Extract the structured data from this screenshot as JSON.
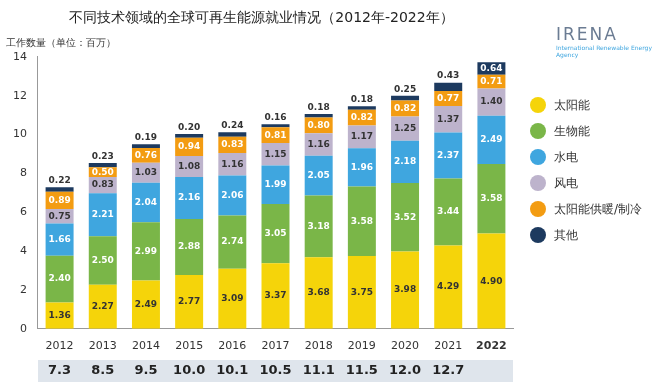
{
  "chart_data": {
    "type": "bar",
    "title": "不同技术领域的全球可再生能源就业情况（2012年-2022年）",
    "y_label": "工作数量（单位：百万）",
    "logo": "IRENA",
    "logo_subtitle": "International Renewable Energy Agency",
    "categories": [
      "2012",
      "2013",
      "2014",
      "2015",
      "2016",
      "2017",
      "2018",
      "2019",
      "2020",
      "2021",
      "2022"
    ],
    "series": [
      {
        "name": "太阳能",
        "color": "#f5d40a",
        "values": [
          1.36,
          2.27,
          2.49,
          2.77,
          3.09,
          3.37,
          3.68,
          3.75,
          3.98,
          4.29,
          4.9
        ],
        "value_labels": [
          "1.36",
          "2.27",
          "2.49",
          "2.77",
          "3.09",
          "3.37",
          "3.68",
          "3.75",
          "3.98",
          "4.29",
          "4.90"
        ]
      },
      {
        "name": "生物能",
        "color": "#7ab648",
        "values": [
          2.4,
          2.5,
          2.99,
          2.88,
          2.74,
          3.05,
          3.18,
          3.58,
          3.52,
          3.44,
          3.58
        ],
        "value_labels": [
          "2.40",
          "2.50",
          "2.99",
          "2.88",
          "2.74",
          "3.05",
          "3.18",
          "3.58",
          "3.52",
          "3.44",
          "3.58"
        ]
      },
      {
        "name": "水电",
        "color": "#3fa6df",
        "values": [
          1.66,
          2.21,
          2.04,
          2.16,
          2.06,
          1.99,
          2.05,
          1.96,
          2.18,
          2.37,
          2.49
        ],
        "value_labels": [
          "1.66",
          "2.21",
          "2.04",
          "2.16",
          "2.06",
          "1.99",
          "2.05",
          "1.96",
          "2.18",
          "2.37",
          "2.49"
        ]
      },
      {
        "name": "风电",
        "color": "#bdb3cc",
        "values": [
          0.75,
          0.83,
          1.03,
          1.08,
          1.16,
          1.15,
          1.16,
          1.17,
          1.25,
          1.37,
          1.4
        ],
        "value_labels": [
          "0.75",
          "0.83",
          "1.03",
          "1.08",
          "1.16",
          "1.15",
          "1.16",
          "1.17",
          "1.25",
          "1.37",
          "1.40"
        ]
      },
      {
        "name": "太阳能供暖/制冷",
        "color": "#f39c12",
        "values": [
          0.89,
          0.5,
          0.76,
          0.94,
          0.83,
          0.81,
          0.8,
          0.82,
          0.82,
          0.77,
          0.71
        ],
        "value_labels": [
          "0.89",
          "0.50",
          "0.76",
          "0.94",
          "0.83",
          "0.81",
          "0.80",
          "0.82",
          "0.82",
          "0.77",
          "0.71"
        ]
      },
      {
        "name": "其他",
        "color": "#1d3a5f",
        "values": [
          0.22,
          0.23,
          0.19,
          0.2,
          0.24,
          0.16,
          0.18,
          0.18,
          0.25,
          0.43,
          0.64
        ],
        "value_labels": [
          "0.22",
          "0.23",
          "0.19",
          "0.20",
          "0.24",
          "0.16",
          "0.18",
          "0.18",
          "0.25",
          "0.43",
          "0.64"
        ]
      }
    ],
    "totals": {
      "values": [
        7.3,
        8.5,
        9.5,
        10.0,
        10.1,
        10.5,
        11.1,
        11.5,
        12.0,
        12.7,
        null
      ],
      "value_labels": [
        "7.3",
        "8.5",
        "9.5",
        "10.0",
        "10.1",
        "10.5",
        "11.1",
        "11.5",
        "12.0",
        "12.7",
        null
      ]
    },
    "ylim": [
      0,
      14
    ],
    "yticks": [
      0,
      2,
      4,
      6,
      8,
      10,
      12,
      14
    ],
    "grid": false,
    "stacked": true,
    "data_labels": true,
    "legend": "right"
  }
}
